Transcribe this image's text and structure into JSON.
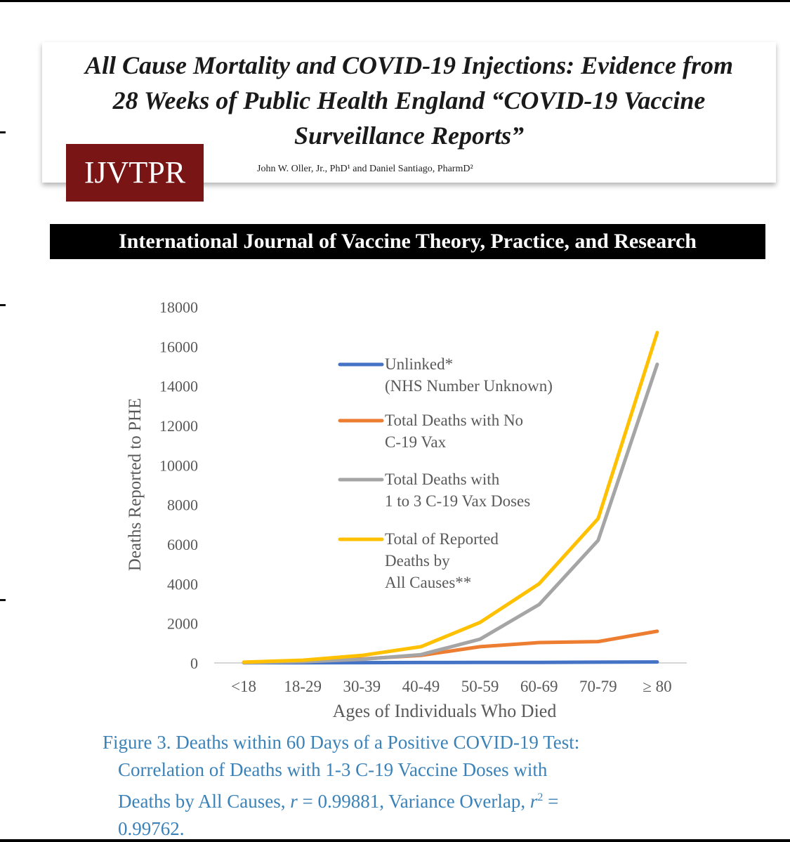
{
  "paper": {
    "title_line1": "All Cause Mortality and COVID-19 Injections: Evidence from",
    "title_line2": "28 Weeks of Public Health England “COVID-19 Vaccine",
    "title_line3": "Surveillance Reports”",
    "authors": "John W. Oller, Jr., PhD¹ and Daniel Santiago, PharmD²",
    "logo_text": "IJVTPR"
  },
  "journal_name": "International Journal of Vaccine Theory, Practice, and Research",
  "chart_data": {
    "type": "line",
    "xlabel": "Ages of Individuals Who Died",
    "ylabel": "Deaths Reported to PHE",
    "categories": [
      "<18",
      "18-29",
      "30-39",
      "40-49",
      "50-59",
      "60-69",
      "70-79",
      "≥ 80"
    ],
    "ylim": [
      0,
      18000
    ],
    "yticks": [
      0,
      2000,
      4000,
      6000,
      8000,
      10000,
      12000,
      14000,
      16000,
      18000
    ],
    "grid": false,
    "legend_position": "upper-middle",
    "series": [
      {
        "name": "Unlinked* (NHS Number Unknown)",
        "legend_lines": [
          "Unlinked*",
          "(NHS Number Unknown)"
        ],
        "color": "#4472c4",
        "values": [
          10,
          10,
          15,
          20,
          25,
          30,
          40,
          50
        ]
      },
      {
        "name": "Total Deaths with No C-19 Vax",
        "legend_lines": [
          "Total Deaths with No",
          "C-19 Vax"
        ],
        "color": "#ed7d31",
        "values": [
          30,
          80,
          200,
          380,
          820,
          1030,
          1080,
          1600
        ]
      },
      {
        "name": "Total Deaths with 1 to 3 C-19 Vax Doses",
        "legend_lines": [
          "Total Deaths with",
          "1 to 3 C-19 Vax Doses"
        ],
        "color": "#a5a5a5",
        "values": [
          10,
          60,
          180,
          420,
          1200,
          2950,
          6200,
          15100
        ]
      },
      {
        "name": "Total of Reported Deaths by All Causes**",
        "legend_lines": [
          "Total of Reported",
          "Deaths by",
          "All Causes**"
        ],
        "color": "#ffc000",
        "values": [
          40,
          140,
          380,
          820,
          2050,
          4000,
          7300,
          16700
        ]
      }
    ]
  },
  "caption": {
    "line1": "Figure 3. Deaths within 60 Days of a Positive COVID-19 Test:",
    "line2": "Correlation of Deaths with 1-3 C-19 Vaccine Doses with",
    "line3_a": "Deaths by All Causes, ",
    "line3_r": "r",
    "line3_b": " = 0.99881, Variance Overlap, ",
    "line3_r2": "r",
    "line3_sup": "2",
    "line3_c": " =",
    "line4": "0.99762."
  }
}
